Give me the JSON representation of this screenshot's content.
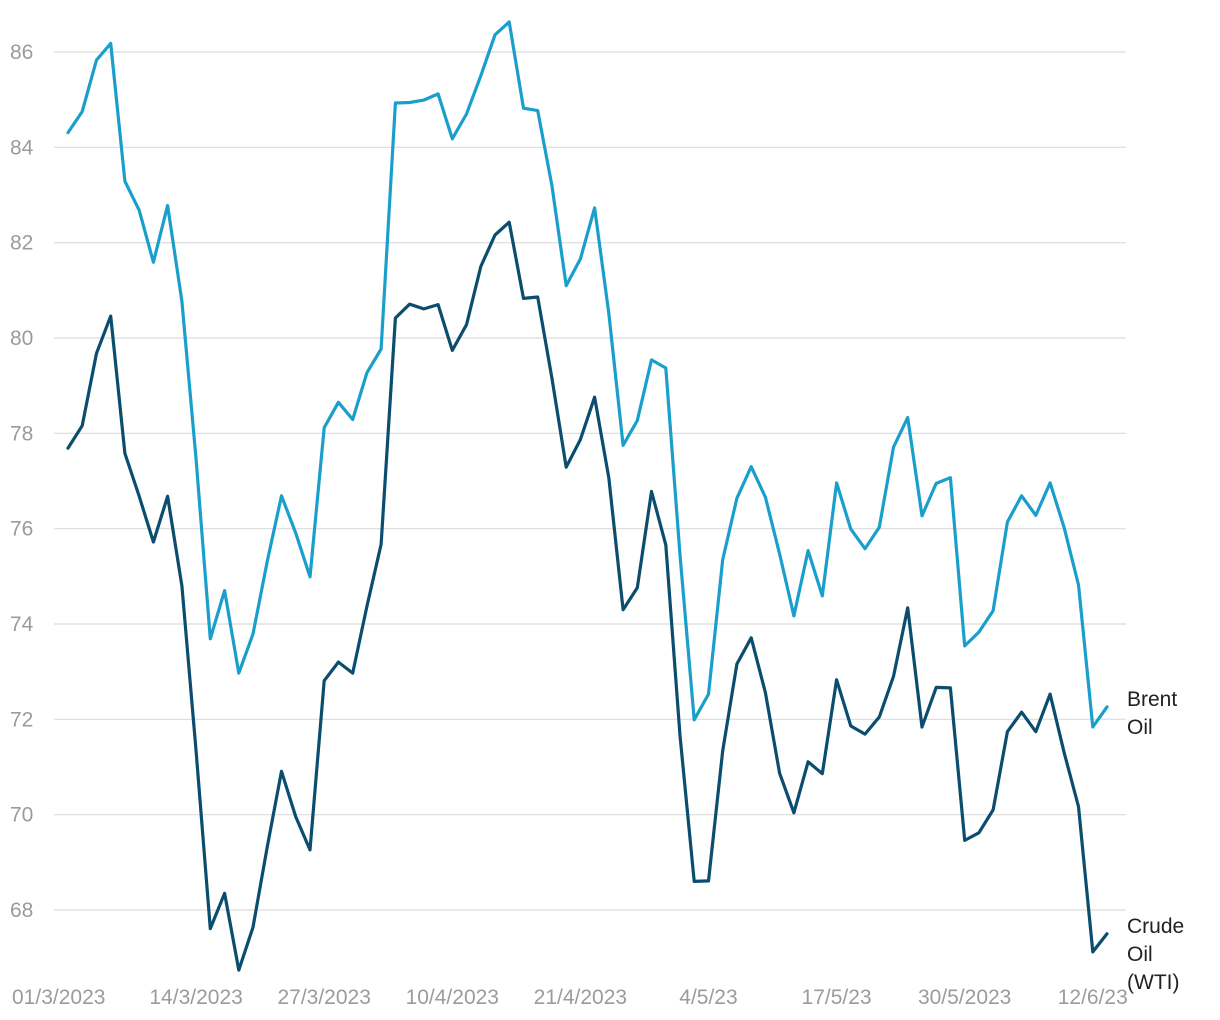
{
  "chart_data": {
    "type": "line",
    "title": "",
    "xlabel": "",
    "ylabel": "",
    "ylim": [
      66.8,
      86.8
    ],
    "y_ticks": [
      68,
      70,
      72,
      74,
      76,
      78,
      80,
      82,
      84,
      86
    ],
    "grid": true,
    "legend": "end-of-line labels",
    "x_tick_labels": [
      {
        "label": "01/3/2023",
        "index": 0
      },
      {
        "label": "14/3/2023",
        "index": 9
      },
      {
        "label": "27/3/2023",
        "index": 18
      },
      {
        "label": "10/4/2023",
        "index": 27
      },
      {
        "label": "21/4/2023",
        "index": 36
      },
      {
        "label": "4/5/23",
        "index": 45
      },
      {
        "label": "17/5/23",
        "index": 54
      },
      {
        "label": "30/5/2023",
        "index": 63
      },
      {
        "label": "12/6/23",
        "index": 72
      }
    ],
    "series": [
      {
        "name": "Brent Oil",
        "label_lines": [
          "Brent",
          "Oil"
        ],
        "color": "#1a9fcd",
        "values": [
          84.31,
          84.75,
          85.83,
          86.18,
          83.29,
          82.68,
          81.59,
          82.78,
          80.77,
          77.45,
          73.69,
          74.7,
          72.97,
          73.79,
          75.32,
          76.69,
          75.91,
          74.99,
          78.12,
          78.65,
          78.29,
          79.27,
          79.77,
          84.93,
          84.94,
          84.99,
          85.12,
          84.18,
          84.7,
          85.5,
          86.36,
          86.63,
          84.82,
          84.77,
          83.2,
          81.1,
          81.66,
          82.73,
          80.52,
          77.75,
          78.27,
          79.54,
          79.37,
          75.45,
          71.99,
          72.53,
          75.35,
          76.64,
          77.3,
          76.66,
          75.47,
          74.17,
          75.54,
          74.59,
          76.96,
          75.99,
          75.58,
          76.03,
          77.71,
          78.33,
          76.27,
          76.95,
          77.07,
          73.54,
          73.83,
          74.28,
          76.14,
          76.69,
          76.28,
          76.96,
          76.01,
          74.82,
          71.84,
          72.26
        ]
      },
      {
        "name": "Crude Oil (WTI)",
        "label_lines": [
          "Crude",
          "Oil",
          "(WTI)"
        ],
        "color": "#0b4d6e",
        "values": [
          77.69,
          78.16,
          79.68,
          80.46,
          77.58,
          76.68,
          75.72,
          76.68,
          74.8,
          71.33,
          67.61,
          68.35,
          66.74,
          67.64,
          69.33,
          70.91,
          69.96,
          69.26,
          72.81,
          73.2,
          72.97,
          74.37,
          75.67,
          80.42,
          80.71,
          80.61,
          80.7,
          79.74,
          80.28,
          81.5,
          82.16,
          82.43,
          80.83,
          80.86,
          79.16,
          77.29,
          77.87,
          78.76,
          77.07,
          74.3,
          74.76,
          76.78,
          75.66,
          71.66,
          68.6,
          68.61,
          71.34,
          73.16,
          73.71,
          72.56,
          70.87,
          70.04,
          71.11,
          70.86,
          72.83,
          71.86,
          71.69,
          72.05,
          72.9,
          74.34,
          71.84,
          72.67,
          72.66,
          69.46,
          69.62,
          70.1,
          71.74,
          72.15,
          71.74,
          72.53,
          71.29,
          70.17,
          67.12,
          67.5
        ]
      }
    ]
  }
}
